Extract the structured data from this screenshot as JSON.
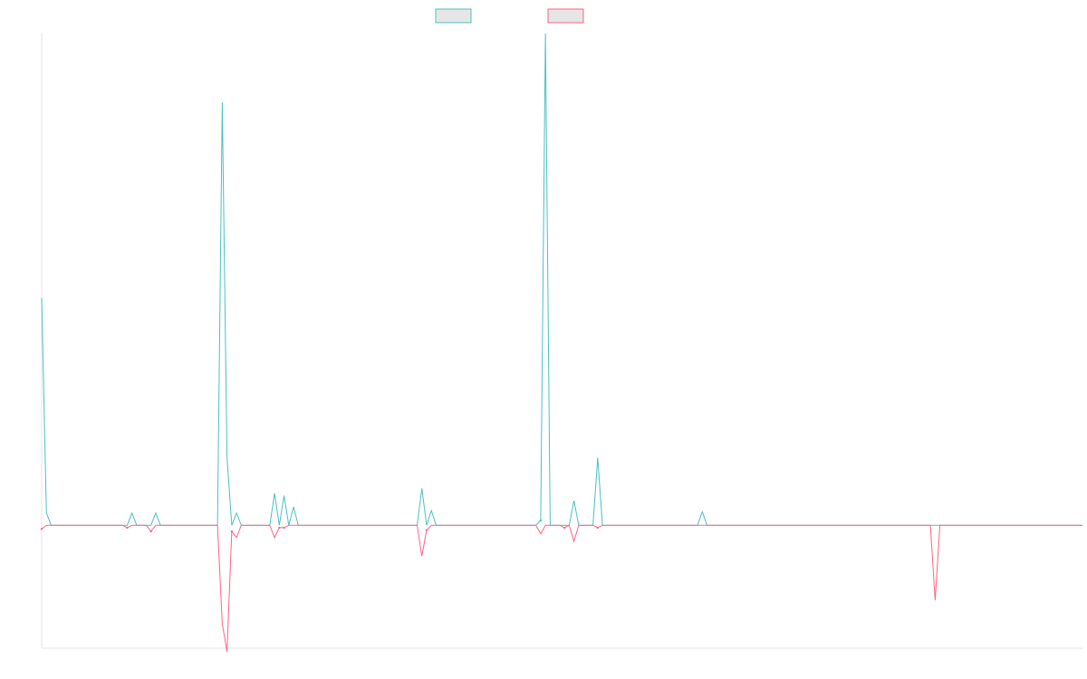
{
  "chart_data": {
    "type": "line",
    "title": "",
    "xlabel": "",
    "ylabel": "",
    "grid": false,
    "legend_position": "top-center",
    "x_count": 220,
    "ylim": [
      -100,
      400
    ],
    "series": [
      {
        "name": "",
        "color": "#4bc0c0",
        "fill": "#e6e6e6",
        "points": [
          [
            0,
            185
          ],
          [
            1,
            10
          ],
          [
            2,
            0
          ],
          [
            18,
            0
          ],
          [
            19,
            10
          ],
          [
            20,
            0
          ],
          [
            23,
            0
          ],
          [
            24,
            10
          ],
          [
            25,
            0
          ],
          [
            37,
            0
          ],
          [
            38,
            344
          ],
          [
            39,
            55
          ],
          [
            40,
            0
          ],
          [
            41,
            10
          ],
          [
            42,
            0
          ],
          [
            48,
            0
          ],
          [
            49,
            26
          ],
          [
            50,
            0
          ],
          [
            51,
            24
          ],
          [
            52,
            0
          ],
          [
            53,
            15
          ],
          [
            54,
            0
          ],
          [
            79,
            0
          ],
          [
            80,
            30
          ],
          [
            81,
            0
          ],
          [
            82,
            12
          ],
          [
            83,
            0
          ],
          [
            104,
            0
          ],
          [
            105,
            4
          ],
          [
            106,
            400
          ],
          [
            107,
            0
          ],
          [
            111,
            0
          ],
          [
            112,
            20
          ],
          [
            113,
            0
          ],
          [
            116,
            0
          ],
          [
            117,
            55
          ],
          [
            118,
            0
          ],
          [
            138,
            0
          ],
          [
            139,
            11
          ],
          [
            140,
            0
          ],
          [
            219,
            0
          ]
        ]
      },
      {
        "name": "",
        "color": "#ff6384",
        "fill": "#e6e6e6",
        "points": [
          [
            0,
            -3
          ],
          [
            1,
            0
          ],
          [
            17,
            0
          ],
          [
            18,
            -2
          ],
          [
            19,
            0
          ],
          [
            22,
            0
          ],
          [
            23,
            -5
          ],
          [
            24,
            0
          ],
          [
            37,
            0
          ],
          [
            38,
            -80
          ],
          [
            39,
            -103
          ],
          [
            40,
            -5
          ],
          [
            41,
            -10
          ],
          [
            42,
            0
          ],
          [
            48,
            0
          ],
          [
            49,
            -10
          ],
          [
            50,
            -2
          ],
          [
            51,
            -2
          ],
          [
            52,
            0
          ],
          [
            79,
            0
          ],
          [
            80,
            -25
          ],
          [
            81,
            -4
          ],
          [
            82,
            0
          ],
          [
            104,
            0
          ],
          [
            105,
            -7
          ],
          [
            106,
            0
          ],
          [
            109,
            0
          ],
          [
            110,
            -2
          ],
          [
            111,
            0
          ],
          [
            112,
            -13
          ],
          [
            113,
            0
          ],
          [
            116,
            0
          ],
          [
            117,
            -2
          ],
          [
            118,
            0
          ],
          [
            187,
            0
          ],
          [
            188,
            -61
          ],
          [
            189,
            0
          ],
          [
            219,
            0
          ]
        ]
      }
    ]
  }
}
